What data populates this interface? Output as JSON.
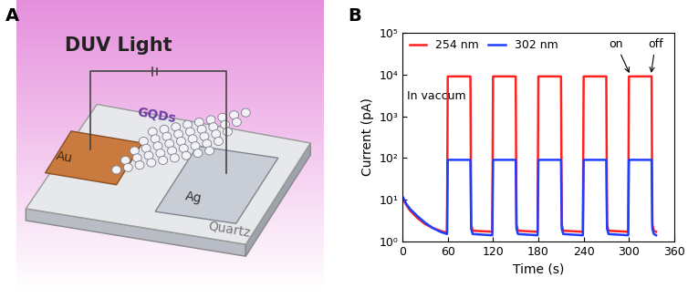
{
  "diagram": {
    "panel_label": "A",
    "title": "DUV Light",
    "labels": {
      "left_electrode": "Au",
      "channel": "GQDs",
      "right_electrode": "Ag",
      "substrate": "Quartz"
    }
  },
  "chart_data": {
    "type": "line",
    "panel_label": "B",
    "x_label": "Time (s)",
    "y_label": "Current (pA)",
    "x": [
      0,
      5,
      10,
      20,
      30,
      40,
      50,
      59,
      60,
      90,
      91,
      93,
      119,
      120,
      150,
      151,
      153,
      179,
      180,
      210,
      211,
      213,
      239,
      240,
      270,
      271,
      273,
      299,
      300,
      330,
      331,
      333,
      336
    ],
    "series": [
      {
        "name": "254 nm",
        "color": "#ff2020",
        "values": [
          11,
          7.5,
          5.5,
          3.6,
          2.6,
          2.1,
          1.8,
          1.6,
          9000,
          9000,
          2.5,
          1.8,
          1.7,
          9000,
          9000,
          2.5,
          1.8,
          1.7,
          9000,
          9000,
          2.5,
          1.8,
          1.7,
          9000,
          9000,
          2.5,
          1.8,
          1.7,
          9000,
          9000,
          2.5,
          1.8,
          1.7
        ]
      },
      {
        "name": "302 nm",
        "color": "#1f3fff",
        "values": [
          12,
          8,
          6,
          4,
          2.8,
          2.1,
          1.7,
          1.5,
          90,
          90,
          2,
          1.5,
          1.4,
          90,
          90,
          2,
          1.5,
          1.4,
          90,
          90,
          2,
          1.5,
          1.4,
          90,
          90,
          2,
          1.5,
          1.4,
          90,
          90,
          2,
          1.5,
          1.4
        ]
      }
    ],
    "xlim": [
      0,
      360
    ],
    "xticks": [
      0,
      60,
      120,
      180,
      240,
      300,
      360
    ],
    "ylim": [
      1,
      100000
    ],
    "log": "y",
    "yticks": [
      {
        "value": 1,
        "label": "10⁰"
      },
      {
        "value": 10,
        "label": "10¹"
      },
      {
        "value": 100,
        "label": "10²"
      },
      {
        "value": 1000,
        "label": "10³"
      },
      {
        "value": 10000,
        "label": "10⁴"
      },
      {
        "value": 100000,
        "label": "10⁵"
      }
    ],
    "legend": "upper left",
    "annotations": [
      {
        "text": "In vaccum",
        "x": 6,
        "y": 2500
      },
      {
        "text": "on",
        "x": 302,
        "y": 9500,
        "text_x": 283,
        "text_y": 45000
      },
      {
        "text": "off",
        "x": 329,
        "y": 9500,
        "text_x": 335,
        "text_y": 45000
      }
    ]
  }
}
